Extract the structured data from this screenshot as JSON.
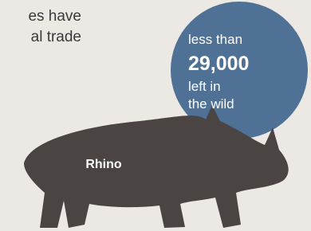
{
  "intro_lines": [
    "es have",
    "al trade"
  ],
  "badge": {
    "prefix": "less than",
    "number": "29,000",
    "suffix_lines": [
      "left in",
      "the wild"
    ]
  },
  "animal": {
    "label": "Rhino"
  }
}
